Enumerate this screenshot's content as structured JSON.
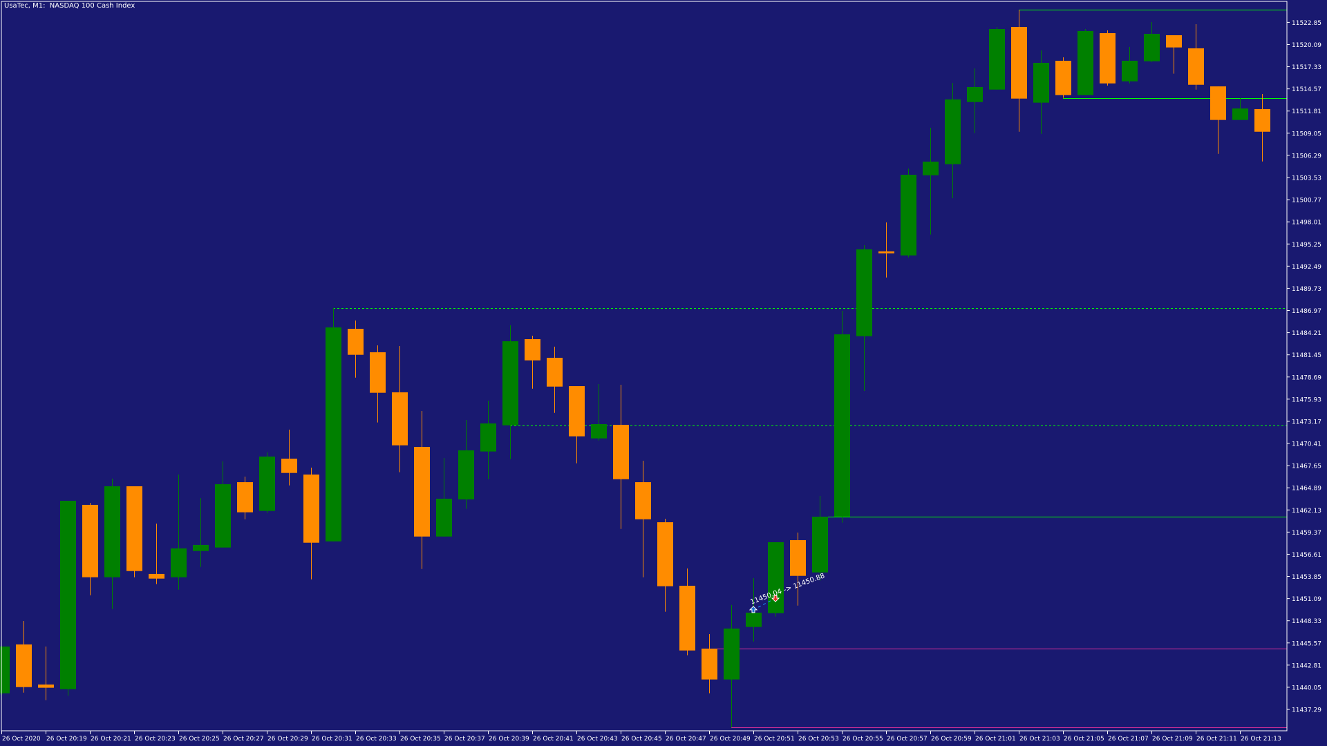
{
  "header": {
    "title": "UsaTec, M1:  NASDAQ 100 Cash Index"
  },
  "colors": {
    "background": "#191970",
    "bull": "#008000",
    "bear": "#FF8C00",
    "axis": "#FFFFFF",
    "level_green": "#00FF00",
    "level_magenta": "#E0309A"
  },
  "chart_data": {
    "type": "candlestick",
    "title": "UsaTec, M1:  NASDAQ 100 Cash Index",
    "ylim": [
      11434.0,
      11526.0
    ],
    "grid": false,
    "y_ticks": [
      "11522.85",
      "11520.09",
      "11517.33",
      "11514.57",
      "11511.81",
      "11509.05",
      "11506.29",
      "11503.53",
      "11500.77",
      "11498.01",
      "11495.25",
      "11492.49",
      "11489.73",
      "11486.97",
      "11484.21",
      "11481.45",
      "11478.69",
      "11475.93",
      "11473.17",
      "11470.41",
      "11467.65",
      "11464.89",
      "11462.13",
      "11459.37",
      "11456.61",
      "11453.85",
      "11451.09",
      "11448.33",
      "11445.57",
      "11442.81",
      "11440.05",
      "11437.29"
    ],
    "x_ticks": [
      {
        "time": "20:17",
        "label": "26 Oct 2020"
      },
      {
        "time": "20:19",
        "label": "26 Oct 20:19"
      },
      {
        "time": "20:21",
        "label": "26 Oct 20:21"
      },
      {
        "time": "20:23",
        "label": "26 Oct 20:23"
      },
      {
        "time": "20:25",
        "label": "26 Oct 20:25"
      },
      {
        "time": "20:27",
        "label": "26 Oct 20:27"
      },
      {
        "time": "20:29",
        "label": "26 Oct 20:29"
      },
      {
        "time": "20:31",
        "label": "26 Oct 20:31"
      },
      {
        "time": "20:33",
        "label": "26 Oct 20:33"
      },
      {
        "time": "20:35",
        "label": "26 Oct 20:35"
      },
      {
        "time": "20:37",
        "label": "26 Oct 20:37"
      },
      {
        "time": "20:39",
        "label": "26 Oct 20:39"
      },
      {
        "time": "20:41",
        "label": "26 Oct 20:41"
      },
      {
        "time": "20:43",
        "label": "26 Oct 20:43"
      },
      {
        "time": "20:45",
        "label": "26 Oct 20:45"
      },
      {
        "time": "20:47",
        "label": "26 Oct 20:47"
      },
      {
        "time": "20:49",
        "label": "26 Oct 20:49"
      },
      {
        "time": "20:51",
        "label": "26 Oct 20:51"
      },
      {
        "time": "20:53",
        "label": "26 Oct 20:53"
      },
      {
        "time": "20:55",
        "label": "26 Oct 20:55"
      },
      {
        "time": "20:57",
        "label": "26 Oct 20:57"
      },
      {
        "time": "20:59",
        "label": "26 Oct 20:59"
      },
      {
        "time": "21:01",
        "label": "26 Oct 21:01"
      },
      {
        "time": "21:03",
        "label": "26 Oct 21:03"
      },
      {
        "time": "21:05",
        "label": "26 Oct 21:05"
      },
      {
        "time": "21:07",
        "label": "26 Oct 21:07"
      },
      {
        "time": "21:09",
        "label": "26 Oct 21:09"
      },
      {
        "time": "21:11",
        "label": "26 Oct 21:11"
      },
      {
        "time": "21:13",
        "label": "26 Oct 21:13"
      }
    ],
    "candles": [
      {
        "t": "20:17",
        "o": 11439.3,
        "h": 11445.2,
        "l": 11439.1,
        "c": 11445.12
      },
      {
        "t": "20:18",
        "o": 11445.38,
        "h": 11448.3,
        "l": 11439.38,
        "c": 11440.07
      },
      {
        "t": "20:19",
        "o": 11440.39,
        "h": 11445.12,
        "l": 11438.44,
        "c": 11439.99
      },
      {
        "t": "20:20",
        "o": 11439.81,
        "h": 11463.27,
        "l": 11438.99,
        "c": 11463.27
      },
      {
        "t": "20:21",
        "o": 11462.76,
        "h": 11463.01,
        "l": 11451.51,
        "c": 11453.75
      },
      {
        "t": "20:22",
        "o": 11453.75,
        "h": 11466.03,
        "l": 11449.79,
        "c": 11465.08
      },
      {
        "t": "20:23",
        "o": 11465.08,
        "h": 11465.08,
        "l": 11453.75,
        "c": 11454.52
      },
      {
        "t": "20:24",
        "o": 11454.16,
        "h": 11460.43,
        "l": 11452.89,
        "c": 11453.58
      },
      {
        "t": "20:25",
        "o": 11453.75,
        "h": 11466.54,
        "l": 11452.2,
        "c": 11457.34
      },
      {
        "t": "20:26",
        "o": 11457.02,
        "h": 11463.61,
        "l": 11455.04,
        "c": 11457.77
      },
      {
        "t": "20:27",
        "o": 11457.45,
        "h": 11468.18,
        "l": 11457.45,
        "c": 11465.34
      },
      {
        "t": "20:28",
        "o": 11465.59,
        "h": 11466.28,
        "l": 11460.97,
        "c": 11461.84
      },
      {
        "t": "20:29",
        "o": 11462.01,
        "h": 11469.29,
        "l": 11461.75,
        "c": 11468.78
      },
      {
        "t": "20:30",
        "o": 11468.52,
        "h": 11472.13,
        "l": 11465.19,
        "c": 11466.74
      },
      {
        "t": "20:31",
        "o": 11466.54,
        "h": 11467.4,
        "l": 11453.49,
        "c": 11458.05
      },
      {
        "t": "20:32",
        "o": 11458.22,
        "h": 11487.28,
        "l": 11458.22,
        "c": 11484.86
      },
      {
        "t": "20:33",
        "o": 11484.69,
        "h": 11485.72,
        "l": 11478.61,
        "c": 11481.45
      },
      {
        "t": "20:34",
        "o": 11481.77,
        "h": 11482.63,
        "l": 11473.02,
        "c": 11476.72
      },
      {
        "t": "20:35",
        "o": 11476.78,
        "h": 11482.54,
        "l": 11466.83,
        "c": 11470.18
      },
      {
        "t": "20:36",
        "o": 11469.98,
        "h": 11474.45,
        "l": 11454.78,
        "c": 11458.82
      },
      {
        "t": "20:37",
        "o": 11458.82,
        "h": 11468.6,
        "l": 11458.82,
        "c": 11463.53
      },
      {
        "t": "20:38",
        "o": 11463.44,
        "h": 11473.34,
        "l": 11462.27,
        "c": 11469.55
      },
      {
        "t": "20:39",
        "o": 11469.41,
        "h": 11475.75,
        "l": 11465.96,
        "c": 11472.9
      },
      {
        "t": "20:40",
        "o": 11472.67,
        "h": 11485.12,
        "l": 11468.46,
        "c": 11483.14
      },
      {
        "t": "20:41",
        "o": 11483.4,
        "h": 11483.83,
        "l": 11477.23,
        "c": 11480.76
      },
      {
        "t": "20:42",
        "o": 11481.08,
        "h": 11482.46,
        "l": 11474.22,
        "c": 11477.49
      },
      {
        "t": "20:43",
        "o": 11477.55,
        "h": 11477.55,
        "l": 11467.94,
        "c": 11471.3
      },
      {
        "t": "20:44",
        "o": 11471.04,
        "h": 11477.81,
        "l": 11470.78,
        "c": 11472.82
      },
      {
        "t": "20:45",
        "o": 11472.73,
        "h": 11477.72,
        "l": 11459.77,
        "c": 11465.96
      },
      {
        "t": "20:46",
        "o": 11465.59,
        "h": 11468.26,
        "l": 11453.75,
        "c": 11460.97
      },
      {
        "t": "20:47",
        "o": 11460.6,
        "h": 11461.03,
        "l": 11449.45,
        "c": 11452.63
      },
      {
        "t": "20:48",
        "o": 11452.69,
        "h": 11454.84,
        "l": 11444.03,
        "c": 11444.63
      },
      {
        "t": "20:49",
        "o": 11444.86,
        "h": 11446.67,
        "l": 11439.3,
        "c": 11441.02
      },
      {
        "t": "20:50",
        "o": 11441.02,
        "h": 11450.29,
        "l": 11435.03,
        "c": 11447.36
      },
      {
        "t": "20:51",
        "o": 11447.56,
        "h": 11453.64,
        "l": 11445.75,
        "c": 11449.34
      },
      {
        "t": "20:52",
        "o": 11449.28,
        "h": 11458.11,
        "l": 11448.85,
        "c": 11458.11
      },
      {
        "t": "20:53",
        "o": 11458.37,
        "h": 11459.31,
        "l": 11450.22,
        "c": 11453.92
      },
      {
        "t": "20:54",
        "o": 11454.35,
        "h": 11463.87,
        "l": 11453.32,
        "c": 11461.29
      },
      {
        "t": "20:55",
        "o": 11461.29,
        "h": 11486.93,
        "l": 11460.54,
        "c": 11484.0
      },
      {
        "t": "20:56",
        "o": 11483.77,
        "h": 11495.1,
        "l": 11476.95,
        "c": 11494.58
      },
      {
        "t": "20:57",
        "o": 11494.33,
        "h": 11497.94,
        "l": 11491.08,
        "c": 11494.09
      },
      {
        "t": "20:58",
        "o": 11493.83,
        "h": 11504.65,
        "l": 11493.58,
        "c": 11503.87
      },
      {
        "t": "20:59",
        "o": 11503.81,
        "h": 11509.72,
        "l": 11496.42,
        "c": 11505.51
      },
      {
        "t": "21:00",
        "o": 11505.19,
        "h": 11515.3,
        "l": 11500.95,
        "c": 11513.25
      },
      {
        "t": "21:01",
        "o": 11512.93,
        "h": 11517.12,
        "l": 11509.06,
        "c": 11514.8
      },
      {
        "t": "21:02",
        "o": 11514.48,
        "h": 11522.28,
        "l": 11514.48,
        "c": 11522.02
      },
      {
        "t": "21:03",
        "o": 11522.28,
        "h": 11524.41,
        "l": 11509.23,
        "c": 11513.36
      },
      {
        "t": "21:04",
        "o": 11512.85,
        "h": 11519.36,
        "l": 11508.97,
        "c": 11517.81
      },
      {
        "t": "21:05",
        "o": 11518.07,
        "h": 11518.5,
        "l": 11513.45,
        "c": 11513.79
      },
      {
        "t": "21:06",
        "o": 11513.79,
        "h": 11522.02,
        "l": 11513.79,
        "c": 11521.77
      },
      {
        "t": "21:07",
        "o": 11521.51,
        "h": 11521.85,
        "l": 11514.98,
        "c": 11515.25
      },
      {
        "t": "21:08",
        "o": 11515.51,
        "h": 11519.79,
        "l": 11515.25,
        "c": 11518.07
      },
      {
        "t": "21:09",
        "o": 11518.01,
        "h": 11522.88,
        "l": 11517.92,
        "c": 11521.42
      },
      {
        "t": "21:10",
        "o": 11521.25,
        "h": 11521.25,
        "l": 11516.46,
        "c": 11519.73
      },
      {
        "t": "21:11",
        "o": 11519.62,
        "h": 11522.63,
        "l": 11514.48,
        "c": 11515.08
      },
      {
        "t": "21:12",
        "o": 11514.88,
        "h": 11514.88,
        "l": 11506.48,
        "c": 11510.7
      },
      {
        "t": "21:13",
        "o": 11510.7,
        "h": 11513.45,
        "l": 11510.7,
        "c": 11512.13
      },
      {
        "t": "21:14",
        "o": 11512.05,
        "h": 11513.94,
        "l": 11505.53,
        "c": 11509.23
      }
    ],
    "levels": [
      {
        "price": 11524.41,
        "from": "21:03",
        "color": "#00FF00",
        "style": "solid"
      },
      {
        "price": 11513.45,
        "from": "21:05",
        "color": "#00FF00",
        "style": "solid"
      },
      {
        "price": 11487.28,
        "from": "20:32",
        "color": "#00FF00",
        "style": "dashed"
      },
      {
        "price": 11472.67,
        "from": "20:40",
        "color": "#00FF00",
        "style": "dashed"
      },
      {
        "price": 11461.29,
        "from": "20:54",
        "color": "#00FF00",
        "style": "solid"
      },
      {
        "price": 11444.86,
        "from": "20:49",
        "color": "#E0309A",
        "style": "solid"
      },
      {
        "price": 11435.03,
        "from": "20:50",
        "color": "#E0309A",
        "style": "solid"
      }
    ],
    "trade": {
      "open_time": "20:51",
      "open_price": 11450.04,
      "close_time": "20:52",
      "close_price": 11450.88,
      "label": "11450.04 -> 11450.88",
      "open_icon": "buy-arrow-up",
      "close_icon": "close-arrow-down"
    }
  }
}
